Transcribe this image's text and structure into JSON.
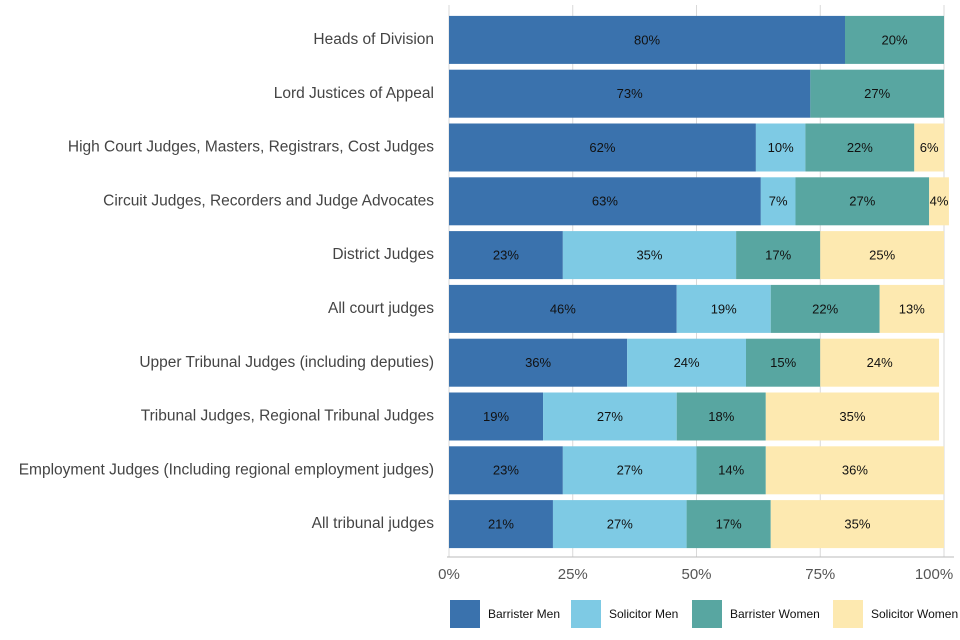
{
  "chart_data": {
    "type": "stacked-bar",
    "orientation": "horizontal",
    "categories": [
      "Heads of Division",
      "Lord Justices of Appeal",
      "High Court Judges, Masters, Registrars, Cost Judges",
      "Circuit Judges, Recorders and Judge Advocates",
      "District Judges",
      "All court judges",
      "Upper Tribunal Judges (including deputies)",
      "Tribunal Judges, Regional Tribunal Judges",
      "Employment Judges (Including regional employment judges)",
      "All tribunal judges"
    ],
    "series": [
      {
        "name": "Barrister Men",
        "color": "#3a72ad",
        "values": [
          80,
          73,
          62,
          63,
          23,
          46,
          36,
          19,
          23,
          21
        ],
        "value_labels": [
          "80%",
          "73%",
          "62%",
          "63%",
          "23%",
          "46%",
          "36%",
          "19%",
          "23%",
          "21%"
        ]
      },
      {
        "name": "Solicitor Men",
        "color": "#7ecae4",
        "values": [
          null,
          null,
          10,
          7,
          35,
          19,
          24,
          27,
          27,
          27
        ],
        "value_labels": [
          null,
          null,
          "10%",
          "7%",
          "35%",
          "19%",
          "24%",
          "27%",
          "27%",
          "27%"
        ]
      },
      {
        "name": "Barrister Women",
        "color": "#58a6a1",
        "values": [
          20,
          27,
          22,
          27,
          17,
          22,
          15,
          18,
          14,
          17
        ],
        "value_labels": [
          "20%",
          "27%",
          "22%",
          "27%",
          "17%",
          "22%",
          "15%",
          "18%",
          "14%",
          "17%"
        ]
      },
      {
        "name": "Solicitor Women",
        "color": "#fde9b0",
        "values": [
          null,
          null,
          6,
          4,
          25,
          13,
          24,
          35,
          36,
          35
        ],
        "value_labels": [
          null,
          null,
          "6%",
          "4%",
          "25%",
          "13%",
          "24%",
          "35%",
          "36%",
          "35%"
        ]
      }
    ],
    "xlim": [
      0,
      100
    ],
    "xticks": [
      {
        "value": 0,
        "label": "0%"
      },
      {
        "value": 25,
        "label": "25%"
      },
      {
        "value": 50,
        "label": "50%"
      },
      {
        "value": 75,
        "label": "75%"
      },
      {
        "value": 100,
        "label": "100%"
      }
    ],
    "grid": true,
    "legend": "bottom"
  }
}
